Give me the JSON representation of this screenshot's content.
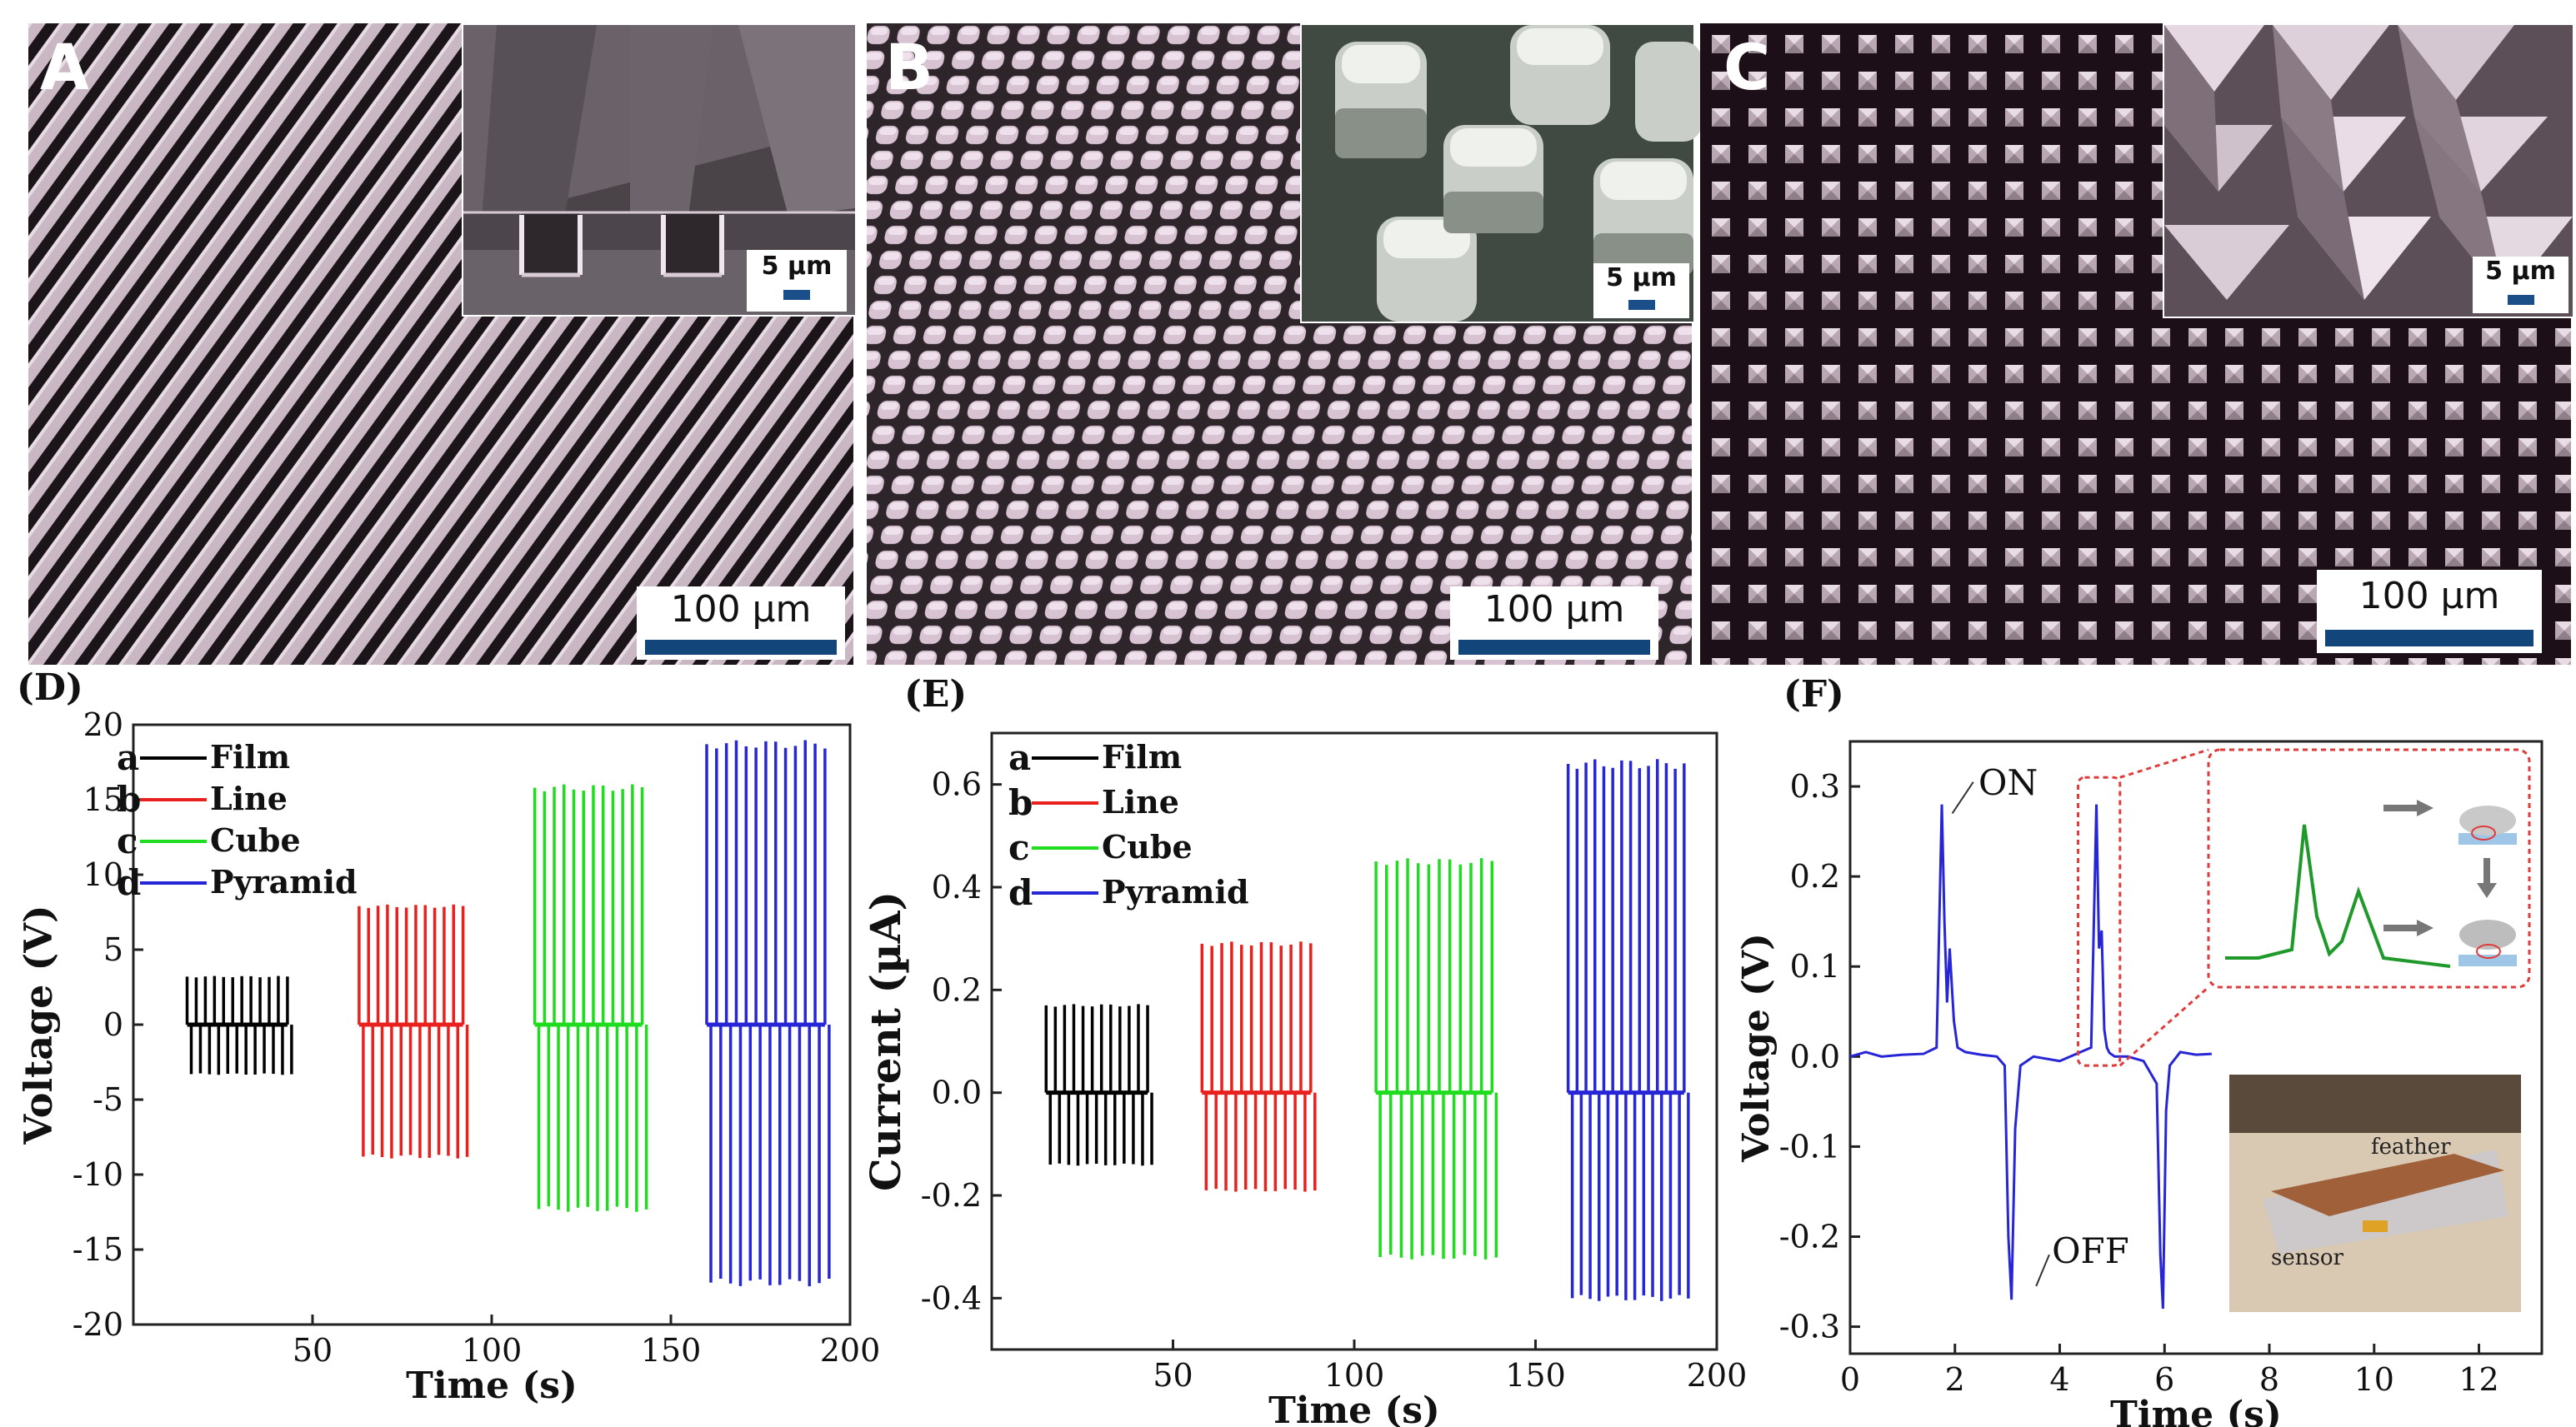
{
  "figure": {
    "panels": [
      {
        "label": "A",
        "scale_bar": "100 µm",
        "inset_scale": "5 µm"
      },
      {
        "label": "B",
        "scale_bar": "100 µm",
        "inset_scale": "5 µm"
      },
      {
        "label": "C",
        "scale_bar": "100 µm",
        "inset_scale": "5 µm"
      }
    ],
    "colors": {
      "film": "#000000",
      "line": "#e8201e",
      "cube": "#1fdc1f",
      "pyramid": "#2626d6",
      "scale_bar": "#12467a",
      "zoom_box": "#e23a3a"
    }
  },
  "chart_data": [
    {
      "panel": "(D)",
      "type": "line",
      "xlabel": "Time (s)",
      "ylabel": "Voltage (V)",
      "xlim": [
        0,
        200
      ],
      "ylim": [
        -20,
        20
      ],
      "x_ticks": [
        50,
        100,
        150,
        200
      ],
      "y_ticks": [
        20,
        15,
        10,
        5,
        0,
        -5,
        -10,
        -15,
        -20
      ],
      "legend_position": "top-left",
      "series": [
        {
          "letter": "a",
          "name": "Film",
          "color": "#000000",
          "t_start": 15,
          "t_end": 43,
          "pulses": 12,
          "peak_pos": 3.2,
          "peak_neg": -3.3
        },
        {
          "letter": "b",
          "name": "Line",
          "color": "#e8201e",
          "t_start": 63,
          "t_end": 92,
          "pulses": 12,
          "peak_pos": 7.9,
          "peak_neg": -8.8
        },
        {
          "letter": "c",
          "name": "Cube",
          "color": "#1fdc1f",
          "t_start": 112,
          "t_end": 142,
          "pulses": 12,
          "peak_pos": 15.8,
          "peak_neg": -12.3
        },
        {
          "letter": "d",
          "name": "Pyramid",
          "color": "#2626d6",
          "t_start": 160,
          "t_end": 193,
          "pulses": 13,
          "peak_pos": 18.7,
          "peak_neg": -17.2
        }
      ]
    },
    {
      "panel": "(E)",
      "type": "line",
      "xlabel": "Time (s)",
      "ylabel": "Current (µA)",
      "xlim": [
        0,
        200
      ],
      "ylim": [
        -0.5,
        0.7
      ],
      "x_ticks": [
        50,
        100,
        150,
        200
      ],
      "y_ticks": [
        0.6,
        0.4,
        0.2,
        0.0,
        -0.2,
        -0.4
      ],
      "legend_position": "top-left",
      "series": [
        {
          "letter": "a",
          "name": "Film",
          "color": "#000000",
          "t_start": 15,
          "t_end": 43,
          "pulses": 12,
          "peak_pos": 0.17,
          "peak_neg": -0.14
        },
        {
          "letter": "b",
          "name": "Line",
          "color": "#e8201e",
          "t_start": 58,
          "t_end": 88,
          "pulses": 12,
          "peak_pos": 0.29,
          "peak_neg": -0.19
        },
        {
          "letter": "c",
          "name": "Cube",
          "color": "#1fdc1f",
          "t_start": 106,
          "t_end": 138,
          "pulses": 12,
          "peak_pos": 0.45,
          "peak_neg": -0.32
        },
        {
          "letter": "d",
          "name": "Pyramid",
          "color": "#2626d6",
          "t_start": 159,
          "t_end": 191,
          "pulses": 14,
          "peak_pos": 0.64,
          "peak_neg": -0.4
        }
      ]
    },
    {
      "panel": "(F)",
      "type": "line",
      "xlabel": "Time (s)",
      "ylabel": "Voltage (V)",
      "xlim": [
        0,
        13.2
      ],
      "ylim": [
        -0.33,
        0.35
      ],
      "x_ticks": [
        0,
        2,
        4,
        6,
        8,
        10,
        12
      ],
      "y_ticks": [
        0.3,
        0.2,
        0.1,
        0.0,
        -0.1,
        -0.2,
        -0.3
      ],
      "annotations": [
        "ON",
        "OFF"
      ],
      "inset_labels": [
        "feather",
        "sensor"
      ],
      "series": [
        {
          "color": "#2626d6",
          "x": [
            0.0,
            0.3,
            0.6,
            1.0,
            1.4,
            1.65,
            1.75,
            1.8,
            1.85,
            1.9,
            1.98,
            2.05,
            2.2,
            2.5,
            2.8,
            2.95,
            3.02,
            3.08,
            3.15,
            3.25,
            3.5,
            4.0,
            4.4,
            4.6,
            4.7,
            4.75,
            4.8,
            4.85,
            4.9,
            4.95,
            5.05,
            5.3,
            5.6,
            5.85,
            5.92,
            5.97,
            6.03,
            6.1,
            6.3,
            6.6,
            6.9
          ],
          "y": [
            0.0,
            0.005,
            0.0,
            0.002,
            0.003,
            0.01,
            0.28,
            0.15,
            0.06,
            0.12,
            0.04,
            0.01,
            0.005,
            0.002,
            0.0,
            -0.01,
            -0.2,
            -0.27,
            -0.08,
            -0.01,
            0.0,
            -0.005,
            0.005,
            0.01,
            0.28,
            0.12,
            0.14,
            0.03,
            0.01,
            0.004,
            0.0,
            0.0,
            -0.005,
            -0.03,
            -0.22,
            -0.28,
            -0.06,
            -0.01,
            0.005,
            0.002,
            0.003
          ]
        }
      ]
    }
  ]
}
